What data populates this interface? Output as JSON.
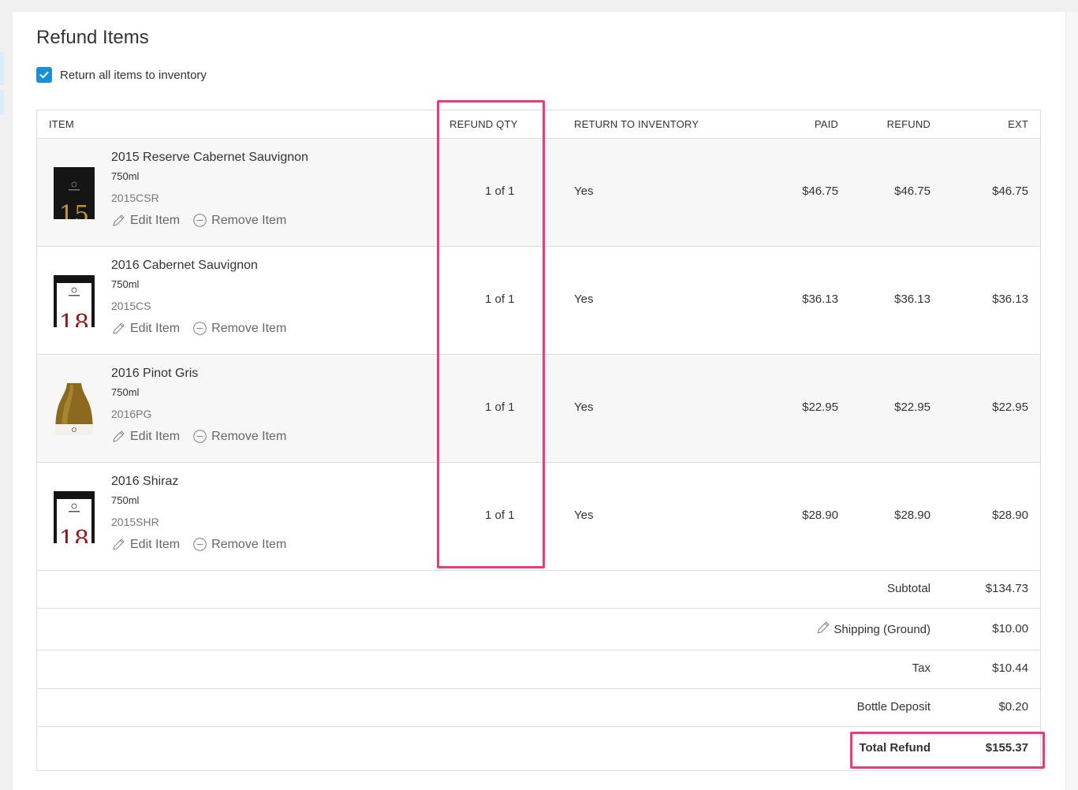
{
  "page": {
    "title": "Refund Items"
  },
  "return_all": {
    "label": "Return all items to inventory",
    "checked": true
  },
  "columns": {
    "item": "ITEM",
    "refund_qty": "REFUND QTY",
    "return_to_inventory": "RETURN TO INVENTORY",
    "paid": "PAID",
    "refund": "REFUND",
    "ext": "EXT"
  },
  "actions": {
    "edit": "Edit Item",
    "remove": "Remove Item"
  },
  "items": [
    {
      "name": "2015 Reserve Cabernet Sauvignon",
      "size": "750ml",
      "sku": "2015CSR",
      "qty": "1 of 1",
      "return": "Yes",
      "paid": "$46.75",
      "refund": "$46.75",
      "ext": "$46.75",
      "thumb": "dark-bottle-gold-15-icon"
    },
    {
      "name": "2016 Cabernet Sauvignon",
      "size": "750ml",
      "sku": "2015CS",
      "qty": "1 of 1",
      "return": "Yes",
      "paid": "$36.13",
      "refund": "$36.13",
      "ext": "$36.13",
      "thumb": "dark-bottle-red-18-icon"
    },
    {
      "name": "2016 Pinot Gris",
      "size": "750ml",
      "sku": "2016PG",
      "qty": "1 of 1",
      "return": "Yes",
      "paid": "$22.95",
      "refund": "$22.95",
      "ext": "$22.95",
      "thumb": "white-wine-bottle-icon"
    },
    {
      "name": "2016 Shiraz",
      "size": "750ml",
      "sku": "2015SHR",
      "qty": "1 of 1",
      "return": "Yes",
      "paid": "$28.90",
      "refund": "$28.90",
      "ext": "$28.90",
      "thumb": "dark-bottle-red-18-icon"
    }
  ],
  "summary": {
    "subtotal_label": "Subtotal",
    "subtotal": "$134.73",
    "shipping_label": "Shipping (Ground)",
    "shipping": "$10.00",
    "tax_label": "Tax",
    "tax": "$10.44",
    "deposit_label": "Bottle Deposit",
    "deposit": "$0.20",
    "total_label": "Total Refund",
    "total": "$155.37"
  },
  "colors": {
    "accent": "#1a8ed8",
    "highlight": "#f0397a",
    "row_alt": "#f7f7f7",
    "border": "#dcdcdc"
  }
}
